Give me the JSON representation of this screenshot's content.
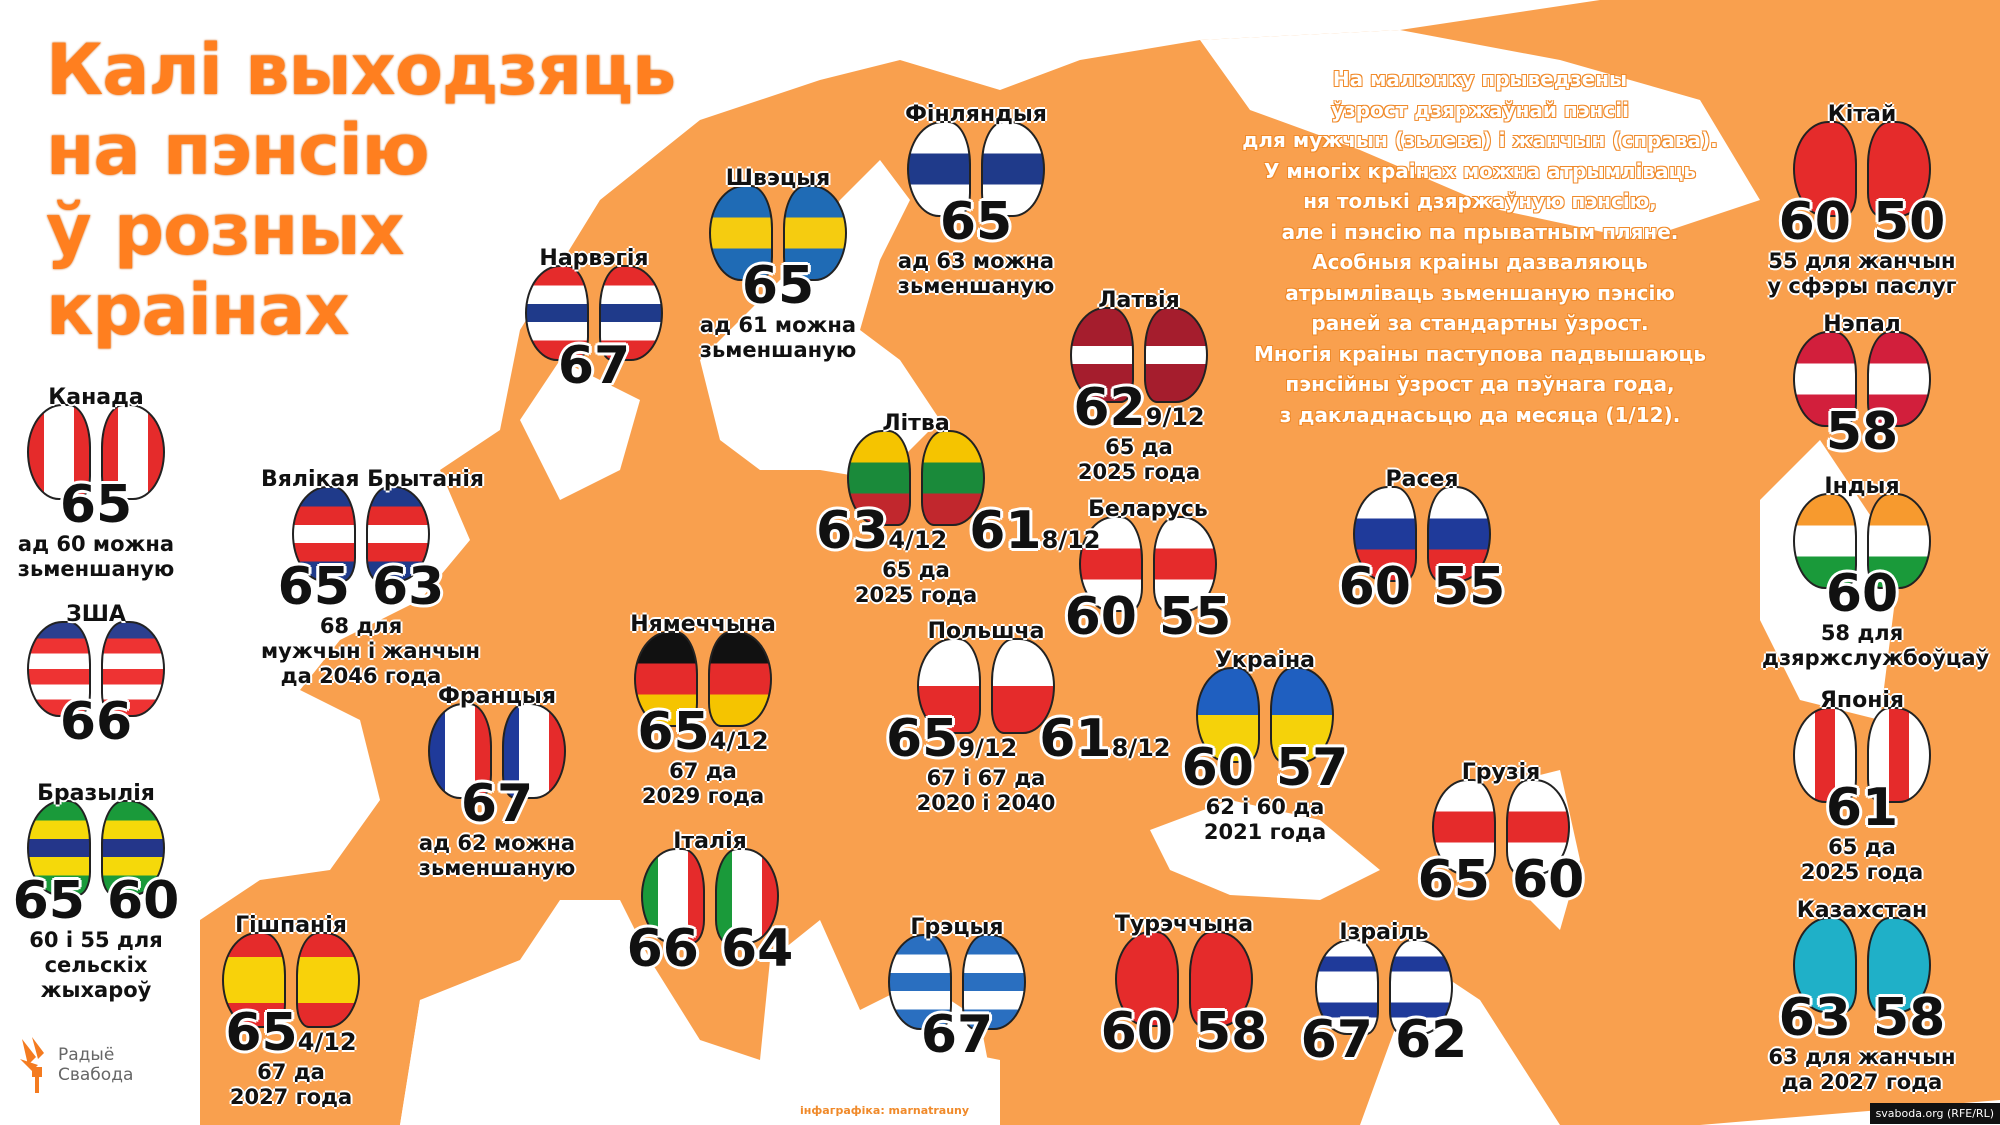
{
  "colors": {
    "map_land": "#f9a04e",
    "title": "#ff7f1f",
    "sea": "#ffffff"
  },
  "title": [
    "Калі выходзяць",
    "на пэнсію",
    "ў розных",
    "краінах"
  ],
  "info": [
    "На малюнку прыведзены",
    "ўзрост дзяржаўнай пэнсіі",
    "для мужчын (зьлева) і жанчын (справа).",
    "У многіх краінах можна атрымліваць",
    "ня толькі дзяржаўную пэнсію,",
    "але і пэнсію па прыватным пляне.",
    "Асобныя краіны дазваляюць",
    "атрымліваць зьменшаную пэнсію",
    "раней за стандартны ўзрост.",
    "Многія краіны паступова падвышаюць",
    "пэнсійны ўзрост да пэўнага года,",
    "з дакладнасьцю да месяца (1/12)."
  ],
  "countries": [
    {
      "name": "Канада",
      "men": "65",
      "women": null,
      "note": [
        "ад 60 можна",
        "зьменшаную"
      ],
      "flag": {
        "dir": "v",
        "colors": [
          "#e52b2b",
          "#ffffff",
          "#ffffff",
          "#e52b2b"
        ]
      }
    },
    {
      "name": "ЗША",
      "men": "66",
      "women": null,
      "note": [],
      "flag": {
        "dir": "h",
        "colors": [
          "#2b3f8f",
          "#e33",
          "#fff",
          "#e33",
          "#fff",
          "#e33"
        ]
      }
    },
    {
      "name": "Бразылія",
      "men": "65",
      "women": "60",
      "note": [
        "60 і 55 для",
        "сельскіх",
        "жыхароў"
      ],
      "flag": {
        "dir": "h",
        "colors": [
          "#1a9a3a",
          "#f5d90a",
          "#24368a",
          "#f5d90a",
          "#1a9a3a"
        ]
      }
    },
    {
      "name": "Гішпанія",
      "men": "65",
      "men_frac": "4/12",
      "women": null,
      "note": [
        "67 да",
        "2027 года"
      ],
      "flag": {
        "dir": "h",
        "colors": [
          "#e52b2b",
          "#f8d20a",
          "#f8d20a",
          "#e52b2b"
        ]
      }
    },
    {
      "name": "Вялікая Брытанія",
      "men": "65",
      "women": "63",
      "note": [
        "68 для",
        "мужчын і жанчын",
        "да 2046 года"
      ],
      "flag": {
        "dir": "h",
        "colors": [
          "#1f3a8a",
          "#e52b2b",
          "#ffffff",
          "#e52b2b",
          "#1f3a8a"
        ]
      }
    },
    {
      "name": "Нарвэгія",
      "men": "67",
      "women": null,
      "note": [],
      "flag": {
        "dir": "h",
        "colors": [
          "#e52b2b",
          "#ffffff",
          "#1f3a8a",
          "#ffffff",
          "#e52b2b"
        ]
      }
    },
    {
      "name": "Швэцыя",
      "men": "65",
      "women": null,
      "note": [
        "ад 61 можна",
        "зьменшаную"
      ],
      "flag": {
        "dir": "h",
        "colors": [
          "#1f6bb5",
          "#f5cc10",
          "#1f6bb5"
        ]
      }
    },
    {
      "name": "Фінляндыя",
      "men": "65",
      "women": null,
      "note": [
        "ад 63 можна",
        "зьменшаную"
      ],
      "flag": {
        "dir": "h",
        "colors": [
          "#ffffff",
          "#1f3a8a",
          "#ffffff"
        ]
      }
    },
    {
      "name": "Латвія",
      "men": "62",
      "men_frac": "9/12",
      "women": null,
      "note": [
        "65 да",
        "2025 года"
      ],
      "flag": {
        "dir": "h",
        "colors": [
          "#a51d2d",
          "#a51d2d",
          "#ffffff",
          "#a51d2d",
          "#a51d2d"
        ]
      }
    },
    {
      "name": "Літва",
      "men": "63",
      "men_frac": "4/12",
      "women": "61",
      "women_frac": "8/12",
      "note": [
        "65 да",
        "2025 года"
      ],
      "flag": {
        "dir": "h",
        "colors": [
          "#f5c400",
          "#1a8a3a",
          "#c1272d"
        ]
      }
    },
    {
      "name": "Беларусь",
      "men": "60",
      "women": "55",
      "note": [],
      "flag": {
        "dir": "h",
        "colors": [
          "#ffffff",
          "#e52b2b",
          "#ffffff"
        ]
      }
    },
    {
      "name": "Расея",
      "men": "60",
      "women": "55",
      "note": [],
      "flag": {
        "dir": "h",
        "colors": [
          "#ffffff",
          "#1f3a9a",
          "#e52b2b"
        ]
      }
    },
    {
      "name": "Нямеччына",
      "men": "65",
      "men_frac": "4/12",
      "women": null,
      "note": [
        "67 да",
        "2029 года"
      ],
      "flag": {
        "dir": "h",
        "colors": [
          "#111111",
          "#e52b2b",
          "#f5c400"
        ]
      }
    },
    {
      "name": "Польшча",
      "men": "65",
      "men_frac": "9/12",
      "women": "61",
      "women_frac": "8/12",
      "note": [
        "67 і 67 да",
        "2020 і 2040"
      ],
      "flag": {
        "dir": "h",
        "colors": [
          "#ffffff",
          "#e52b2b"
        ]
      }
    },
    {
      "name": "Францыя",
      "men": "67",
      "women": null,
      "note": [
        "ад 62 можна",
        "зьменшаную"
      ],
      "flag": {
        "dir": "v",
        "colors": [
          "#1f3a9a",
          "#ffffff",
          "#ffffff",
          "#e52b2b"
        ]
      }
    },
    {
      "name": "Украіна",
      "men": "60",
      "women": "57",
      "note": [
        "62 і 60 да",
        "2021 года"
      ],
      "flag": {
        "dir": "h",
        "colors": [
          "#1f5fc0",
          "#f5d20a"
        ]
      }
    },
    {
      "name": "Італія",
      "men": "66",
      "women": "64",
      "note": [],
      "flag": {
        "dir": "v",
        "colors": [
          "#1a9a3a",
          "#ffffff",
          "#ffffff",
          "#e52b2b"
        ]
      }
    },
    {
      "name": "Грэцыя",
      "men": "67",
      "women": null,
      "note": [],
      "flag": {
        "dir": "h",
        "colors": [
          "#2a6fc0",
          "#ffffff",
          "#2a6fc0",
          "#ffffff",
          "#2a6fc0"
        ]
      }
    },
    {
      "name": "Турэччына",
      "men": "60",
      "women": "58",
      "note": [],
      "flag": {
        "dir": "h",
        "colors": [
          "#e52b2b",
          "#e52b2b"
        ]
      }
    },
    {
      "name": "Ізраіль",
      "men": "67",
      "women": "62",
      "note": [],
      "flag": {
        "dir": "h",
        "colors": [
          "#ffffff",
          "#1f3a9a",
          "#ffffff",
          "#ffffff",
          "#1f3a9a",
          "#ffffff"
        ]
      }
    },
    {
      "name": "Грузія",
      "men": "65",
      "women": "60",
      "note": [],
      "flag": {
        "dir": "h",
        "colors": [
          "#ffffff",
          "#e52b2b",
          "#ffffff"
        ]
      }
    },
    {
      "name": "Кітай",
      "men": "60",
      "women": "50",
      "note": [
        "55 для жанчын",
        "у сфэры паслуг"
      ],
      "flag": {
        "dir": "h",
        "colors": [
          "#e52b2b",
          "#e52b2b"
        ]
      }
    },
    {
      "name": "Нэпал",
      "men": "58",
      "women": null,
      "note": [],
      "flag": {
        "dir": "h",
        "colors": [
          "#d21f3c",
          "#ffffff",
          "#d21f3c"
        ]
      }
    },
    {
      "name": "Індыя",
      "men": "60",
      "women": null,
      "note": [
        "58 для",
        "дзяржслужбоўцаў"
      ],
      "flag": {
        "dir": "h",
        "colors": [
          "#f79a2e",
          "#ffffff",
          "#1a9a3a"
        ]
      }
    },
    {
      "name": "Японія",
      "men": "61",
      "women": null,
      "note": [
        "65 да",
        "2025 года"
      ],
      "flag": {
        "dir": "v",
        "colors": [
          "#ffffff",
          "#e52b2b",
          "#ffffff"
        ]
      }
    },
    {
      "name": "Казахстан",
      "men": "63",
      "women": "58",
      "note": [
        "63 для жанчын",
        "да 2027 года"
      ],
      "flag": {
        "dir": "h",
        "colors": [
          "#1fb0c8",
          "#1fb0c8"
        ]
      }
    }
  ],
  "logo": {
    "line1": "Радыё",
    "line2": "Свабода"
  },
  "credit": "інфаграфіка: marnatrauny",
  "source": "svaboda.org (RFE/RL)"
}
